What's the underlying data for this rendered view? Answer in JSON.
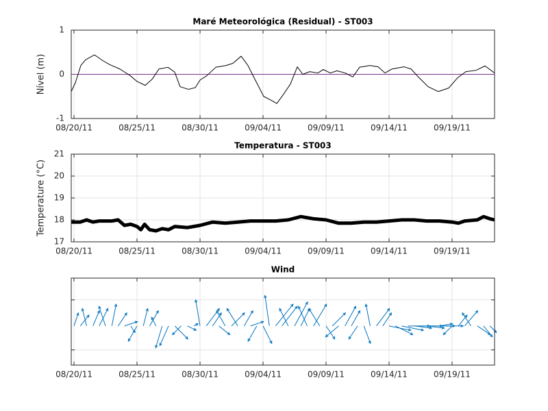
{
  "chart_data": [
    {
      "type": "line",
      "title": "Maré Meteorológica (Residual) - ST003",
      "ylabel": "Nível (m)",
      "color": "#000000",
      "line_width": 1,
      "x": [
        -0.22,
        0.11,
        0.54,
        0.92,
        1.63,
        2.28,
        2.83,
        3.64,
        4.46,
        5.0,
        5.65,
        6.2,
        6.74,
        7.45,
        7.99,
        8.42,
        9.08,
        9.62,
        10.0,
        10.54,
        11.25,
        12.07,
        12.61,
        13.26,
        13.8,
        14.35,
        15.05,
        15.6,
        16.09,
        16.58,
        17.17,
        17.72,
        18.15,
        18.7,
        19.35,
        19.78,
        20.33,
        20.87,
        21.52,
        22.12,
        22.66,
        23.48,
        24.13,
        24.67,
        25.22,
        26.2,
        26.74,
        27.39,
        28.1,
        28.91,
        29.73,
        30.43,
        31.09,
        31.9,
        32.61,
        33.37
      ],
      "values": [
        -0.39,
        -0.19,
        0.2,
        0.33,
        0.44,
        0.31,
        0.22,
        0.12,
        -0.03,
        -0.16,
        -0.25,
        -0.11,
        0.12,
        0.16,
        0.05,
        -0.28,
        -0.34,
        -0.3,
        -0.13,
        -0.03,
        0.16,
        0.2,
        0.25,
        0.41,
        0.2,
        -0.11,
        -0.5,
        -0.58,
        -0.66,
        -0.47,
        -0.22,
        0.17,
        0,
        0.06,
        0.03,
        0.11,
        0.03,
        0.08,
        0.03,
        -0.06,
        0.16,
        0.2,
        0.17,
        0.03,
        0.12,
        0.17,
        0.12,
        -0.08,
        -0.28,
        -0.39,
        -0.31,
        -0.08,
        0.06,
        0.09,
        0.19,
        0.03
      ],
      "hline": 0,
      "hline_color": "#7e2f8e",
      "xlim": [
        -0.22,
        33.37
      ],
      "ylim": [
        -1,
        1
      ],
      "yticks": [
        -1,
        0,
        1
      ],
      "xticks": [
        {
          "value": 0,
          "label": "08/20/11"
        },
        {
          "value": 5,
          "label": "08/25/11"
        },
        {
          "value": 10,
          "label": "08/30/11"
        },
        {
          "value": 15,
          "label": "09/04/11"
        },
        {
          "value": 20,
          "label": "09/09/11"
        },
        {
          "value": 25,
          "label": "09/14/11"
        },
        {
          "value": 30,
          "label": "09/19/11"
        }
      ],
      "grid": true
    },
    {
      "type": "line",
      "title": "Temperatura - ST003",
      "ylabel": "Temperature (°C)",
      "color": "#000000",
      "line_width": 5,
      "x": [
        -0.22,
        0.5,
        1,
        1.5,
        2,
        3,
        3.5,
        4,
        4.5,
        5,
        5.3,
        5.6,
        6,
        6.5,
        7,
        7.5,
        8,
        9,
        10,
        11,
        12,
        13,
        14,
        15,
        16,
        17,
        18,
        19,
        20,
        21,
        22,
        23,
        24,
        25,
        26,
        27,
        28,
        29,
        30,
        30.5,
        31,
        32,
        32.5,
        33,
        33.37
      ],
      "values": [
        17.9,
        17.9,
        18.0,
        17.9,
        17.95,
        17.95,
        18.0,
        17.75,
        17.8,
        17.7,
        17.55,
        17.8,
        17.55,
        17.5,
        17.6,
        17.55,
        17.7,
        17.65,
        17.75,
        17.9,
        17.85,
        17.9,
        17.95,
        17.95,
        17.95,
        18.0,
        18.15,
        18.05,
        18.0,
        17.85,
        17.85,
        17.9,
        17.9,
        17.95,
        18.0,
        18.0,
        17.95,
        17.95,
        17.9,
        17.85,
        17.95,
        18.0,
        18.15,
        18.05,
        18.0
      ],
      "xlim": [
        -0.22,
        33.37
      ],
      "ylim": [
        17,
        21
      ],
      "yticks": [
        17,
        18,
        19,
        20,
        21
      ],
      "xticks": [
        {
          "value": 0,
          "label": "08/20/11"
        },
        {
          "value": 5,
          "label": "08/25/11"
        },
        {
          "value": 10,
          "label": "08/30/11"
        },
        {
          "value": 15,
          "label": "09/04/11"
        },
        {
          "value": 20,
          "label": "09/09/11"
        },
        {
          "value": 25,
          "label": "09/14/11"
        },
        {
          "value": 30,
          "label": "09/19/11"
        }
      ],
      "grid": true
    },
    {
      "type": "quiver",
      "title": "Wind",
      "color": "#0072bd",
      "x": [
        0,
        0.5,
        1,
        1.5,
        2,
        2.5,
        3,
        3.5,
        4,
        4.5,
        5,
        5.5,
        6,
        6.5,
        7,
        7.5,
        8,
        8.5,
        9,
        9.5,
        10,
        10.5,
        11,
        11.5,
        12,
        12.5,
        13,
        13.5,
        14,
        14.5,
        15,
        15.5,
        16,
        16.5,
        17,
        17.5,
        18,
        18.5,
        19,
        19.5,
        20,
        20.5,
        21,
        21.5,
        22,
        22.5,
        23,
        23.5,
        24,
        24.5,
        25,
        25.5,
        26,
        26.5,
        27,
        27.5,
        28,
        28.5,
        29,
        29.5,
        30,
        30.5,
        31,
        31.5,
        32,
        32.5,
        33
      ],
      "u": [
        0.1,
        0.2,
        -0.1,
        0.15,
        0.2,
        -0.15,
        0.1,
        0.2,
        0.3,
        0.1,
        -0.2,
        0.1,
        0.2,
        -0.1,
        -0.15,
        -0.2,
        0.3,
        -0.2,
        0.2,
        0.1,
        -0.1,
        0.3,
        0.2,
        0.25,
        -0.2,
        0.3,
        -0.25,
        0.2,
        0.3,
        -0.2,
        0.2,
        -0.1,
        0.4,
        0.35,
        -0.2,
        0.3,
        0.2,
        -0.2,
        0.3,
        -0.25,
        0.2,
        0.3,
        -0.3,
        0.25,
        0.2,
        -0.2,
        0.15,
        -0.1,
        0.3,
        0.2,
        0.5,
        0.4,
        0.5,
        0.5,
        0.4,
        0.5,
        0.4,
        0.5,
        0.3,
        0.4,
        -0.2,
        0.2,
        0.3,
        -0.2,
        0.3,
        0.2,
        0.15
      ],
      "v": [
        0.3,
        0.25,
        0.4,
        0.35,
        0.4,
        0.45,
        0.5,
        0.3,
        0.1,
        -0.15,
        -0.35,
        0.4,
        0.35,
        0.2,
        -0.5,
        -0.45,
        -0.3,
        -0.2,
        -0.1,
        0.05,
        0.6,
        0.4,
        0.3,
        -0.2,
        0.35,
        0.3,
        0.4,
        0.35,
        0.1,
        -0.35,
        -0.4,
        0.7,
        0.5,
        0.45,
        0.4,
        0.55,
        0.4,
        0.45,
        0.5,
        0.4,
        -0.3,
        0.3,
        -0.25,
        0.45,
        0.35,
        -0.3,
        -0.4,
        0.5,
        0.4,
        0.3,
        -0.1,
        -0.2,
        -0.1,
        0,
        -0.05,
        0,
        -0.05,
        0,
        0.05,
        0,
        -0.2,
        0.25,
        0.35,
        0.3,
        -0.2,
        -0.25,
        -0.15
      ],
      "xlim": [
        -0.22,
        33.37
      ],
      "ylim": [
        -0.9,
        1.1
      ],
      "yticks": [
        -0.55,
        0.6
      ],
      "ytick_labels": false,
      "xticks": [
        {
          "value": 0,
          "label": "08/20/11"
        },
        {
          "value": 5,
          "label": "08/25/11"
        },
        {
          "value": 10,
          "label": "08/30/11"
        },
        {
          "value": 15,
          "label": "09/04/11"
        },
        {
          "value": 20,
          "label": "09/09/11"
        },
        {
          "value": 25,
          "label": "09/14/11"
        },
        {
          "value": 30,
          "label": "09/19/11"
        }
      ],
      "grid": true
    }
  ]
}
